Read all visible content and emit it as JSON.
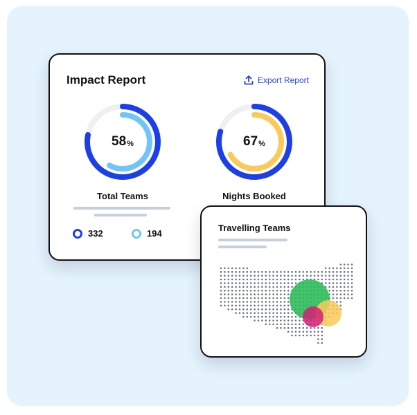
{
  "colors": {
    "background": "#e4f3fd",
    "primary_blue": "#1c3fe8",
    "light_blue": "#6fc6f6",
    "yellow": "#fbc95a",
    "track": "#eef0f3",
    "link": "#1f45e6",
    "map_dots": "#6b7580",
    "bubble_green": "#2fbd5a",
    "bubble_yellow": "#fbc95a",
    "bubble_magenta": "#d61f78"
  },
  "impact_report": {
    "title": "Impact Report",
    "export": {
      "label": "Export Report",
      "icon": "upload-icon"
    },
    "total_teams": {
      "label": "Total Teams",
      "percent_value": "58",
      "percent_unit": "%",
      "progress": 0.58,
      "legend": [
        {
          "value": "332",
          "color": "#1c3fe8"
        },
        {
          "value": "194",
          "color": "#6fc6f6"
        }
      ]
    },
    "nights_booked": {
      "label": "Nights Booked",
      "percent_value": "67",
      "percent_unit": "%",
      "progress": 0.67
    }
  },
  "travelling_teams": {
    "title": "Travelling Teams",
    "bubbles": [
      {
        "name": "green",
        "color": "#2fbd5a"
      },
      {
        "name": "yellow",
        "color": "#fbc95a"
      },
      {
        "name": "magenta",
        "color": "#d61f78"
      }
    ]
  }
}
